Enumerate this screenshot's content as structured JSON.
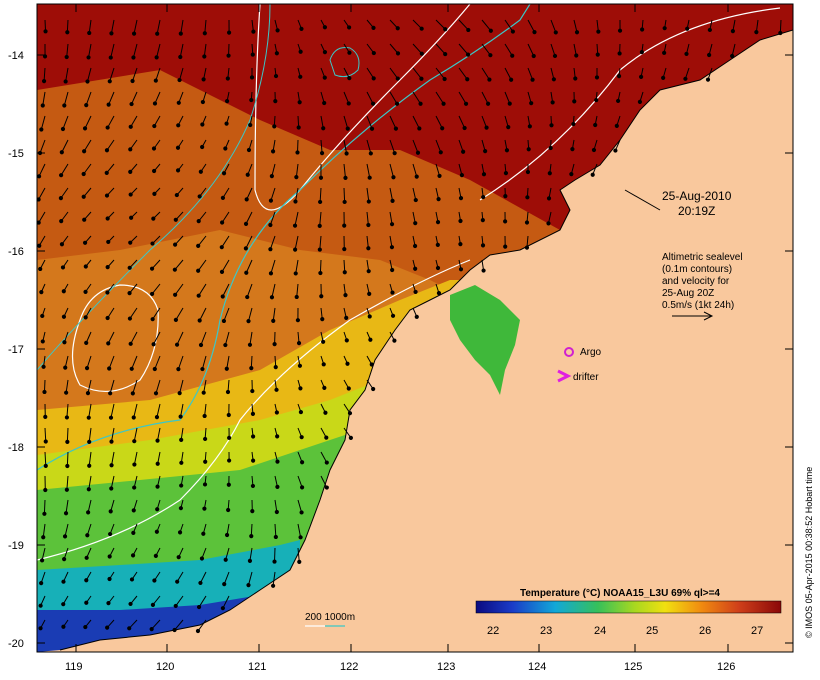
{
  "map": {
    "date_line1": "25-Aug-2010",
    "date_line2": "20:19Z",
    "legend_lines": [
      "Altimetric sealevel",
      "(0.1m contours)",
      "and velocity for",
      "25-Aug 20Z",
      "0.5m/s (1kt 24h)"
    ],
    "argo_label": "Argo",
    "drifter_label": "drifter",
    "bathy_label": "200  1000m",
    "colorbar_title": "Temperature (°C) NOAA15_L3U 69% ql>=4",
    "colorbar_ticks": [
      "22",
      "23",
      "24",
      "25",
      "26",
      "27"
    ],
    "lat_labels": [
      "-14",
      "-15",
      "-16",
      "-17",
      "-18",
      "-19",
      "-20"
    ],
    "lon_labels": [
      "119",
      "120",
      "121",
      "122",
      "123",
      "124",
      "125",
      "126"
    ],
    "credit": "© IMOS 05-Apr-2015 00:38:52 Hobart time",
    "colors": {
      "land": "#f9c89d",
      "sst_hot": "#9e0d07",
      "sst_warm": "#c55a12",
      "sst_yellow": "#e8dc10",
      "sst_green": "#3fb83a",
      "sst_cyan": "#0aa7c9",
      "sst_blue": "#1a2fa0",
      "contour_1000m": "#3cc7c7",
      "argo": "#d020d0"
    }
  }
}
